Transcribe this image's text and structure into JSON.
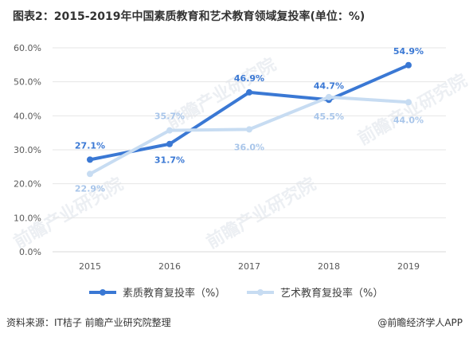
{
  "title": "图表2：2015-2019年中国素质教育和艺术教育领域复投率(单位：%)",
  "source": "资料来源：IT桔子 前瞻产业研究院整理",
  "brand": "@前瞻经济学人APP",
  "watermarks": [
    "前瞻产业研究院",
    "前瞻产业研究院",
    "前瞻产业研究院",
    "前瞻产业研究院"
  ],
  "colors": {
    "series1": "#3a78d4",
    "series2": "#c7dcf2",
    "grid": "#e6e6e6",
    "axis": "#d9d9d9",
    "text": "#595959"
  },
  "chart_data": {
    "type": "line",
    "x": [
      "2015",
      "2016",
      "2017",
      "2018",
      "2019"
    ],
    "ylim": [
      0,
      60
    ],
    "yticks": [
      "0.0%",
      "10.0%",
      "20.0%",
      "30.0%",
      "40.0%",
      "50.0%",
      "60.0%"
    ],
    "grid": true,
    "legend_position": "bottom",
    "series": [
      {
        "name": "素质教育复投率（%）",
        "values": [
          27.1,
          31.7,
          46.9,
          44.7,
          54.9
        ],
        "labels": [
          "27.1%",
          "31.7%",
          "46.9%",
          "44.7%",
          "54.9%"
        ]
      },
      {
        "name": "艺术教育复投率（%）",
        "values": [
          22.9,
          35.7,
          36.0,
          45.5,
          44.0
        ],
        "labels": [
          "22.9%",
          "35.7%",
          "36.0%",
          "45.5%",
          "44.0%"
        ]
      }
    ]
  }
}
